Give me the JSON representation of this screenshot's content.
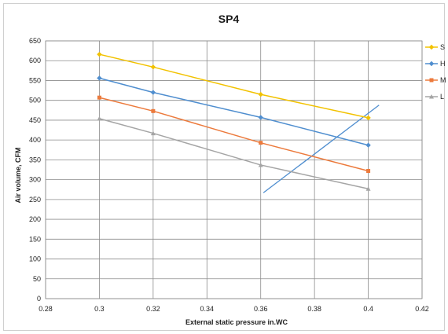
{
  "chart_data": {
    "type": "line",
    "title": "SP4",
    "xlabel": "External static pressure  in.WC",
    "ylabel": "Air volume, CFM",
    "xlim": [
      0.28,
      0.42
    ],
    "ylim": [
      0,
      650
    ],
    "x_ticks": [
      0.28,
      0.3,
      0.32,
      0.34,
      0.36,
      0.38,
      0.4,
      0.42
    ],
    "y_ticks": [
      0,
      50,
      100,
      150,
      200,
      250,
      300,
      350,
      400,
      450,
      500,
      550,
      600,
      650
    ],
    "x_tick_labels": [
      "0.28",
      "0.3",
      "0.32",
      "0.34",
      "0.36",
      "0.38",
      "0.4",
      "0.42"
    ],
    "grid": true,
    "legend_position": "right",
    "series": [
      {
        "name": "S",
        "color": "#f2c200",
        "marker": "diamond",
        "x": [
          0.3,
          0.32,
          0.36,
          0.4
        ],
        "y": [
          616,
          584,
          515,
          456
        ]
      },
      {
        "name": "H",
        "color": "#4f8ecf",
        "marker": "diamond",
        "x": [
          0.3,
          0.32,
          0.36,
          0.4
        ],
        "y": [
          556,
          520,
          457,
          387
        ]
      },
      {
        "name": "M",
        "color": "#ec7a3c",
        "marker": "square",
        "x": [
          0.3,
          0.32,
          0.36,
          0.4
        ],
        "y": [
          507,
          473,
          393,
          322
        ]
      },
      {
        "name": "L",
        "color": "#a5a5a5",
        "marker": "triangle",
        "x": [
          0.3,
          0.32,
          0.36,
          0.4
        ],
        "y": [
          454,
          417,
          337,
          277
        ]
      }
    ],
    "system_curve": {
      "color": "#4f8ecf",
      "x": [
        0.361,
        0.404
      ],
      "y": [
        267,
        488
      ]
    }
  }
}
